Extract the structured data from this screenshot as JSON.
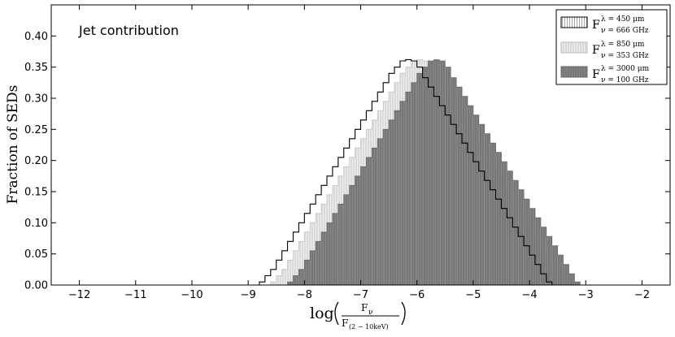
{
  "chart_data": {
    "type": "bar",
    "annotation": "Jet contribution",
    "ylabel": "Fraction of SEDs",
    "xlabel": {
      "prefix": "log",
      "numerator": "F",
      "numerator_sub": "ν",
      "denominator": "F",
      "denominator_sub": "(2 − 10keV)"
    },
    "xlim": [
      -12.5,
      -1.5
    ],
    "ylim": [
      0,
      0.45
    ],
    "xticks": [
      "−12",
      "−11",
      "−10",
      "−9",
      "−8",
      "−7",
      "−6",
      "−5",
      "−4",
      "−3",
      "−2"
    ],
    "yticks": [
      "0.00",
      "0.05",
      "0.10",
      "0.15",
      "0.20",
      "0.25",
      "0.30",
      "0.35",
      "0.40"
    ],
    "legend_position": "top-right",
    "bin_width": 0.1,
    "series": [
      {
        "legend": {
          "main": "F",
          "sup": "λ = 450 μm",
          "sub": "ν = 666 GHz"
        },
        "style": "outline",
        "color": "#000000",
        "bin_start": -8.8,
        "values": [
          0.005,
          0.015,
          0.025,
          0.04,
          0.055,
          0.07,
          0.085,
          0.1,
          0.115,
          0.13,
          0.145,
          0.16,
          0.175,
          0.19,
          0.205,
          0.22,
          0.235,
          0.25,
          0.265,
          0.28,
          0.295,
          0.31,
          0.325,
          0.34,
          0.35,
          0.36,
          0.362,
          0.36,
          0.35,
          0.333,
          0.318,
          0.303,
          0.288,
          0.273,
          0.258,
          0.243,
          0.228,
          0.213,
          0.198,
          0.183,
          0.168,
          0.153,
          0.138,
          0.123,
          0.108,
          0.093,
          0.078,
          0.063,
          0.048,
          0.033,
          0.018,
          0.005
        ]
      },
      {
        "legend": {
          "main": "F",
          "sup": "λ = 850 μm",
          "sub": "ν = 353 GHz"
        },
        "style": "fill",
        "color": "#d8d8d8",
        "bin_start": -8.6,
        "values": [
          0.005,
          0.015,
          0.025,
          0.04,
          0.055,
          0.07,
          0.085,
          0.1,
          0.115,
          0.13,
          0.145,
          0.16,
          0.175,
          0.19,
          0.205,
          0.22,
          0.235,
          0.25,
          0.265,
          0.28,
          0.295,
          0.31,
          0.325,
          0.34,
          0.35,
          0.36,
          0.362,
          0.36,
          0.35,
          0.333,
          0.318,
          0.303,
          0.288,
          0.273,
          0.258,
          0.243,
          0.228,
          0.213,
          0.198,
          0.183,
          0.168,
          0.153,
          0.138,
          0.123,
          0.108,
          0.093,
          0.078,
          0.063,
          0.048,
          0.033,
          0.018,
          0.005
        ]
      },
      {
        "legend": {
          "main": "F",
          "sup": "λ = 3000 μm",
          "sub": "ν = 100 GHz"
        },
        "style": "fill",
        "color": "#7a7a7a",
        "bin_start": -8.3,
        "values": [
          0.005,
          0.015,
          0.025,
          0.04,
          0.055,
          0.07,
          0.085,
          0.1,
          0.115,
          0.13,
          0.145,
          0.16,
          0.175,
          0.19,
          0.205,
          0.22,
          0.235,
          0.25,
          0.265,
          0.28,
          0.295,
          0.31,
          0.325,
          0.34,
          0.35,
          0.36,
          0.362,
          0.36,
          0.35,
          0.333,
          0.318,
          0.303,
          0.288,
          0.273,
          0.258,
          0.243,
          0.228,
          0.213,
          0.198,
          0.183,
          0.168,
          0.153,
          0.138,
          0.123,
          0.108,
          0.093,
          0.078,
          0.063,
          0.048,
          0.033,
          0.018,
          0.005
        ]
      }
    ]
  }
}
